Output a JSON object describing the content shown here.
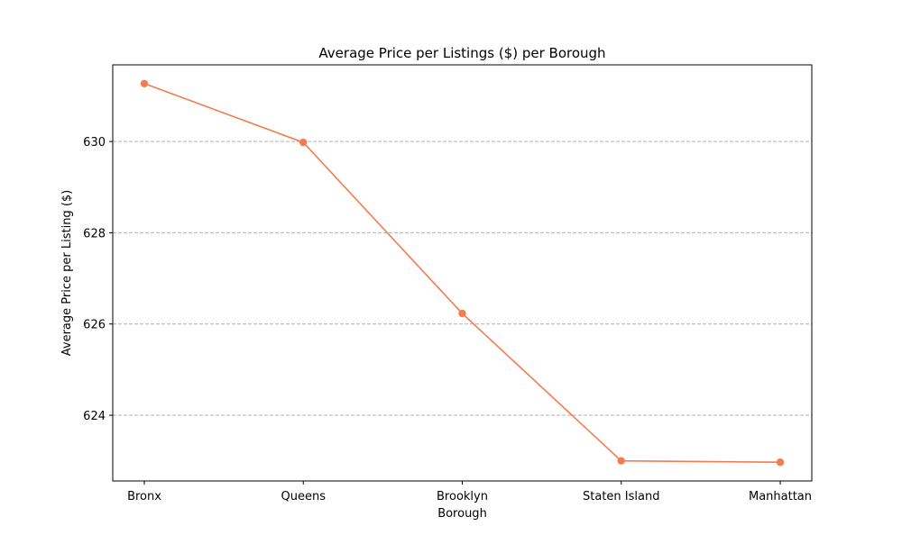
{
  "chart_data": {
    "type": "line",
    "title": "Average Price per Listings ($) per Borough",
    "xlabel": "Borough",
    "ylabel": "Average Price per Listing ($)",
    "categories": [
      "Bronx",
      "Queens",
      "Brooklyn",
      "Staten Island",
      "Manhattan"
    ],
    "series": [
      {
        "values": [
          631.27,
          629.98,
          626.23,
          623.0,
          622.97
        ],
        "color": "#f47c4f",
        "marker": "circle"
      }
    ],
    "yticks": [
      624,
      626,
      628,
      630
    ],
    "ylim": [
      622.56,
      631.68
    ],
    "grid": "y-dashed",
    "grid_color": "#b0b0b0",
    "legend": "none"
  }
}
